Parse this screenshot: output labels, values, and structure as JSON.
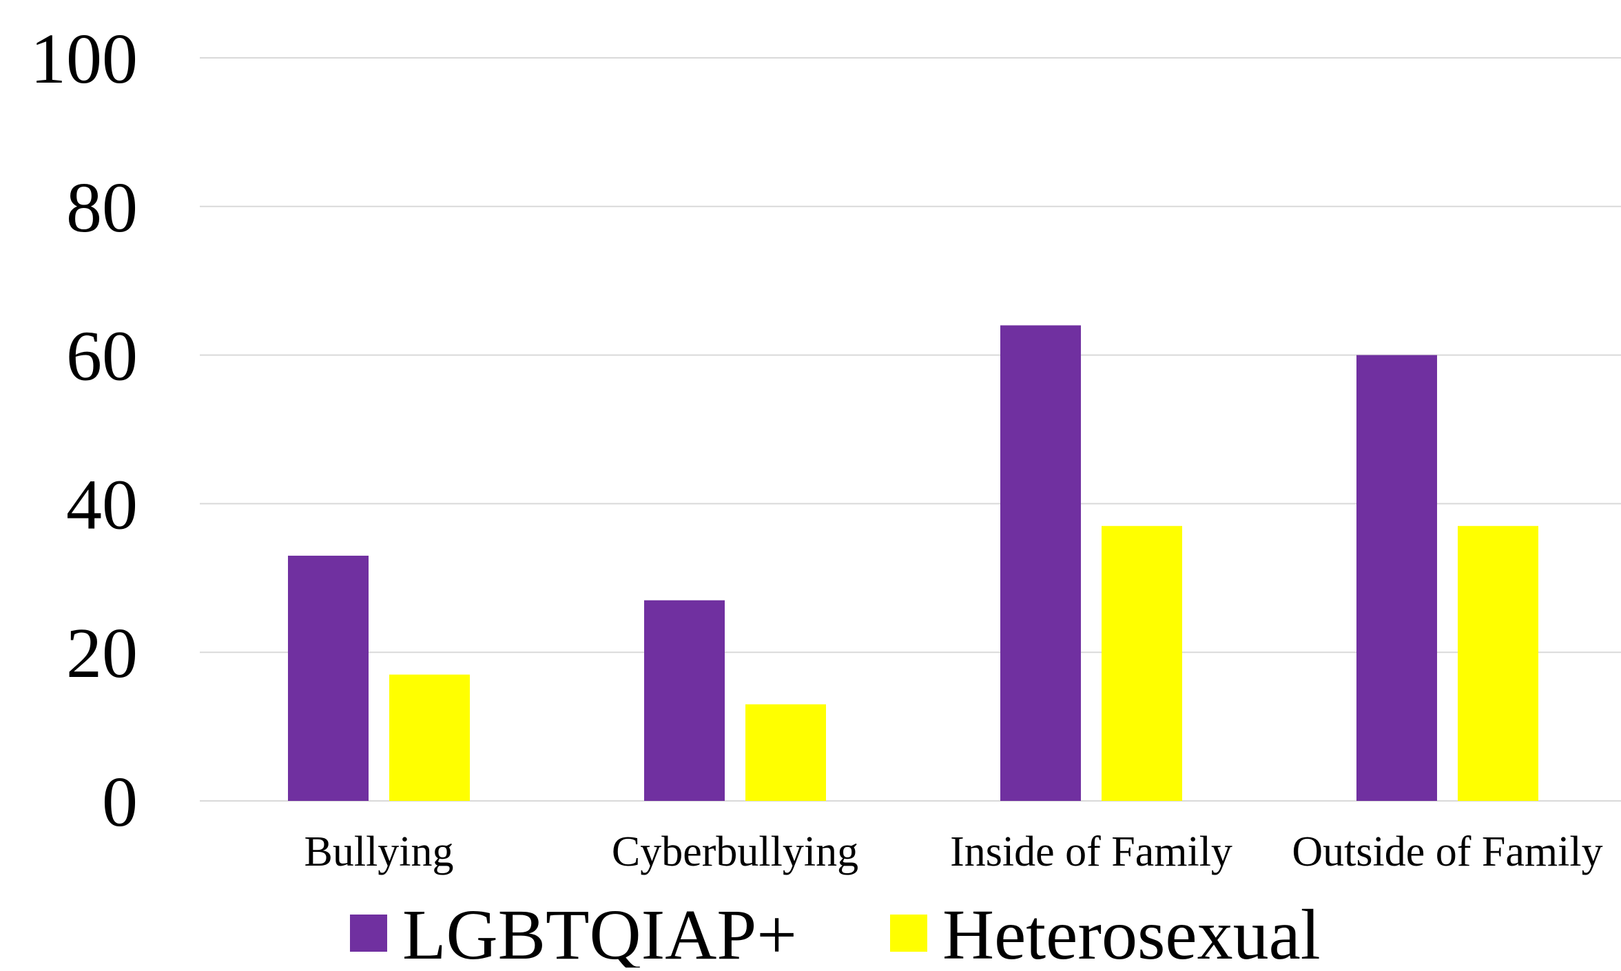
{
  "chart_data": {
    "type": "bar",
    "title": "",
    "xlabel": "",
    "ylabel": "",
    "ylim": [
      0,
      100
    ],
    "yticks": [
      "0",
      "20",
      "40",
      "60",
      "80",
      "100"
    ],
    "grid": true,
    "legend_position": "bottom",
    "categories": [
      "Bullying",
      "Cyberbullying",
      "Inside of Family",
      "Outside of Family"
    ],
    "series": [
      {
        "name": "LGBTQIAP+",
        "color": "#7030a0",
        "values": [
          33,
          27,
          64,
          60
        ]
      },
      {
        "name": "Heterosexual",
        "color": "#ffff00",
        "values": [
          17,
          13,
          37,
          37
        ]
      }
    ]
  }
}
